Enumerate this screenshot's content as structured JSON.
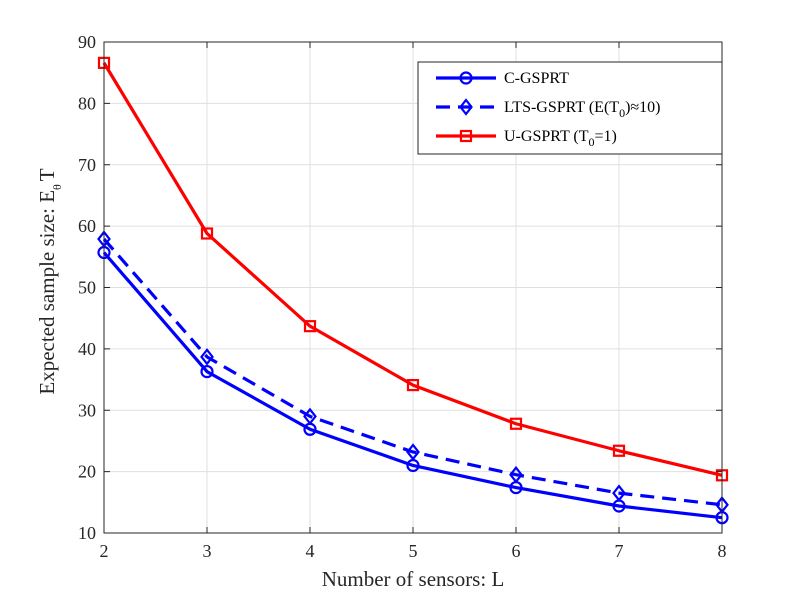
{
  "chart_data": {
    "type": "line",
    "xlabel": "Number of sensors: L",
    "ylabel": "Expected sample size: E",
    "ylabel_sub": "θ",
    "ylabel_tail": "T",
    "xlim": [
      2,
      8
    ],
    "ylim": [
      10,
      90
    ],
    "xticks": [
      2,
      3,
      4,
      5,
      6,
      7,
      8
    ],
    "yticks": [
      10,
      20,
      30,
      40,
      50,
      60,
      70,
      80,
      90
    ],
    "grid": true,
    "legend_position": "top-right",
    "x": [
      2,
      3,
      4,
      5,
      6,
      7,
      8
    ],
    "series": [
      {
        "name": "C-GSPRT",
        "values": [
          55.7,
          36.3,
          26.9,
          21.0,
          17.4,
          14.4,
          12.5
        ],
        "color": "#0000ff",
        "line_style": "solid",
        "marker": "circle"
      },
      {
        "name_parts": [
          "LTS-GSPRT (E(T",
          "0",
          ")≈10)"
        ],
        "values": [
          57.9,
          38.7,
          29.0,
          23.2,
          19.5,
          16.5,
          14.6
        ],
        "color": "#0000ff",
        "line_style": "dashed",
        "marker": "diamond"
      },
      {
        "name_parts": [
          "U-GSPRT (T",
          "0",
          "=1)"
        ],
        "values": [
          86.6,
          58.8,
          43.7,
          34.1,
          27.8,
          23.4,
          19.4
        ],
        "color": "#ff0000",
        "line_style": "solid",
        "marker": "square"
      }
    ]
  }
}
